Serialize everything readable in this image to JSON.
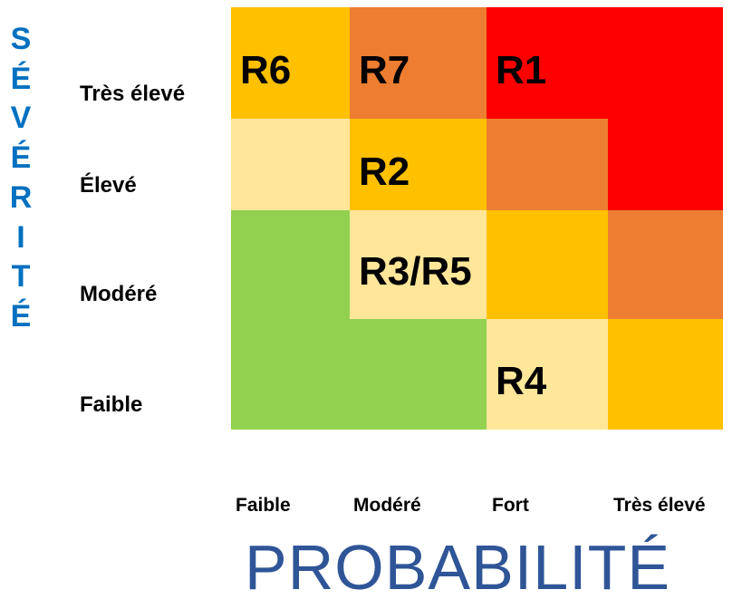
{
  "y_axis_title_letters": [
    "S",
    "É",
    "V",
    "É",
    "R",
    "I",
    "T",
    "É"
  ],
  "x_axis_title": "PROBABILITÉ",
  "row_labels": [
    "Très élevé",
    "Élevé",
    "Modéré",
    "Faible"
  ],
  "col_labels": [
    "Faible",
    "Modéré",
    "Fort",
    "Très élevé"
  ],
  "colors": {
    "green": "#92d050",
    "light_yellow": "#ffe699",
    "yellow": "#ffc000",
    "orange": "#ed7d31",
    "red": "#ff0000",
    "axis_title_blue": "#2f5597",
    "severity_blue": "#0070c0"
  },
  "matrix": [
    [
      "yellow",
      "orange",
      "red",
      "red"
    ],
    [
      "light_yellow",
      "yellow",
      "orange",
      "red"
    ],
    [
      "green",
      "light_yellow",
      "yellow",
      "orange"
    ],
    [
      "green",
      "green",
      "light_yellow",
      "yellow"
    ]
  ],
  "risks": [
    {
      "label": "R6",
      "severity": "Très élevé",
      "probability": "Faible"
    },
    {
      "label": "R7",
      "severity": "Très élevé",
      "probability": "Modéré"
    },
    {
      "label": "R1",
      "severity": "Très élevé",
      "probability": "Fort"
    },
    {
      "label": "R2",
      "severity": "Élevé",
      "probability": "Modéré"
    },
    {
      "label": "R3/R5",
      "severity": "Modéré",
      "probability": "Modéré"
    },
    {
      "label": "R4",
      "severity": "Faible",
      "probability": "Fort"
    }
  ]
}
